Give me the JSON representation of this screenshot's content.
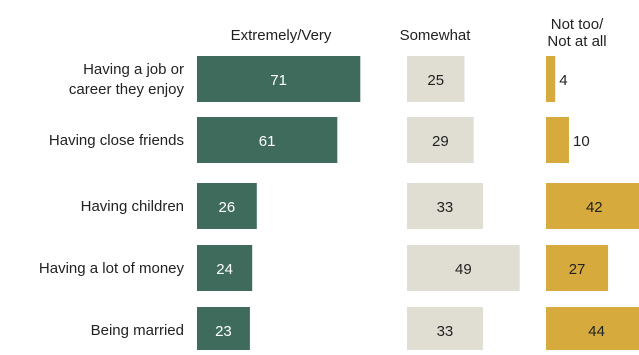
{
  "chart_data": {
    "type": "bar",
    "title": "",
    "categories": [
      "Having a job or career they enjoy",
      "Having close friends",
      "Having children",
      "Having a lot of money",
      "Being married"
    ],
    "category_lines": [
      [
        "Having a job or",
        "career they enjoy"
      ],
      [
        "Having close friends"
      ],
      [
        "Having children"
      ],
      [
        "Having a lot of money"
      ],
      [
        "Being married"
      ]
    ],
    "series": [
      {
        "name": "Extremely/Very",
        "header_lines": [
          "Extremely/Very"
        ],
        "color": "#3f6b5d",
        "label_color": "#ffffff",
        "values": [
          71,
          61,
          26,
          24,
          23
        ]
      },
      {
        "name": "Somewhat",
        "header_lines": [
          "Somewhat"
        ],
        "color": "#e0ddd2",
        "label_color": "#222222",
        "values": [
          25,
          29,
          33,
          49,
          33
        ]
      },
      {
        "name": "Not too/Not at all",
        "header_lines": [
          "Not too/",
          "Not at all"
        ],
        "color": "#d6aa3c",
        "label_color": "#222222",
        "values": [
          4,
          10,
          42,
          27,
          44
        ]
      }
    ],
    "legend": "column headers at top"
  }
}
